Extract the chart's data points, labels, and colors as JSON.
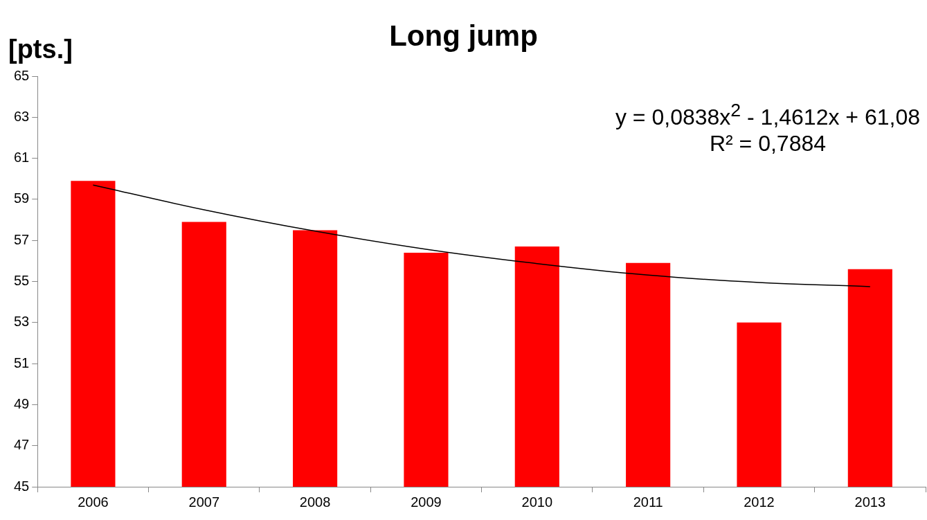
{
  "chart_data": {
    "type": "bar",
    "title": "Long jump",
    "ylabel": "[pts.]",
    "categories": [
      "2006",
      "2007",
      "2008",
      "2009",
      "2010",
      "2011",
      "2012",
      "2013"
    ],
    "series": [
      {
        "color": "#ff0000",
        "values": [
          59.9,
          57.9,
          57.5,
          56.4,
          56.7,
          55.9,
          53.0,
          55.6
        ]
      },
      {
        "type": "line",
        "color": "#000000",
        "marker": "none",
        "values": [
          59.7,
          58.49,
          57.45,
          56.57,
          55.87,
          55.31,
          54.95,
          54.75
        ]
      }
    ],
    "ylim": [
      45,
      65
    ],
    "yticks": [
      45,
      47,
      49,
      51,
      53,
      55,
      57,
      59,
      61,
      63,
      65
    ],
    "annotations": [
      "y = 0,0838x$^{2}$ - 1,4612x + 61,08",
      "R² = 0,7884"
    ],
    "grid": false,
    "legend": false
  }
}
